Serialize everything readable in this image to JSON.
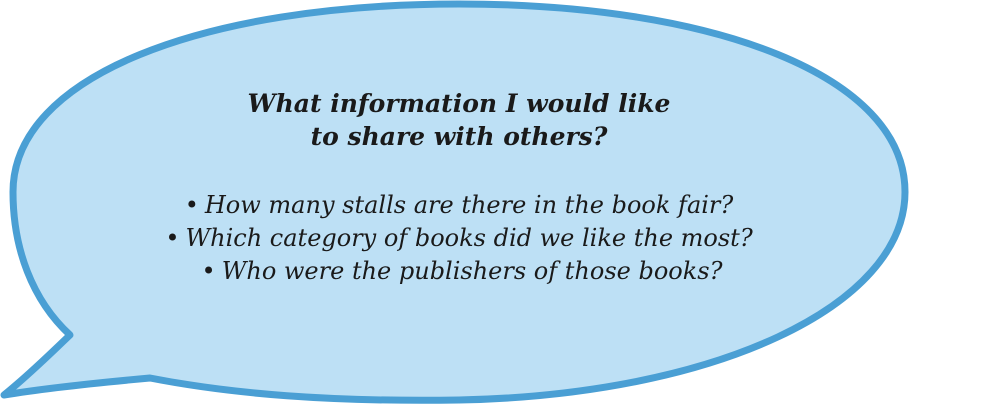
{
  "bubble": {
    "fill_color": "#bde0f5",
    "border_color": "#4a9fd4",
    "heading_lines": [
      "What information I would like",
      "to share with others?"
    ],
    "bullet_symbol": "•",
    "questions": [
      "How many stalls are there in the book fair?",
      "Which category of books did we like the most?",
      "Who were the publishers of those books?"
    ]
  }
}
